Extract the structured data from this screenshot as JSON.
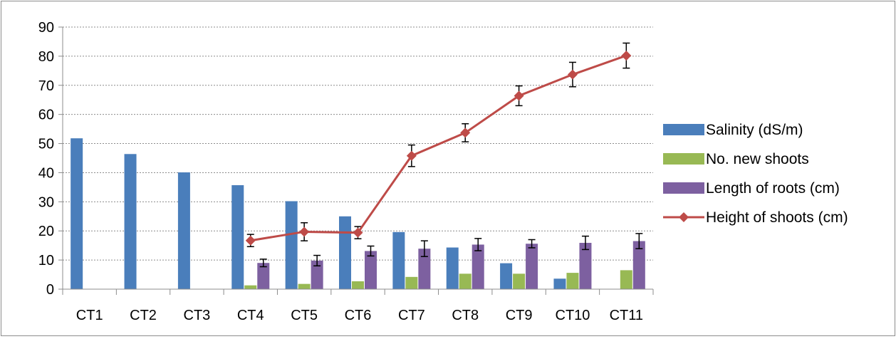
{
  "chart_data": {
    "type": "bar",
    "categories": [
      "CT1",
      "CT2",
      "CT3",
      "CT4",
      "CT5",
      "CT6",
      "CT7",
      "CT8",
      "CT9",
      "CT10",
      "CT11"
    ],
    "ylim": [
      0,
      90
    ],
    "yticks": [
      0,
      10,
      20,
      30,
      40,
      50,
      60,
      70,
      80,
      90
    ],
    "grid": true,
    "legend_position": "right",
    "series": [
      {
        "name": "Salinity (dS/m)",
        "kind": "bar",
        "color": "#4a7ebb",
        "values": [
          51.8,
          46.4,
          40.1,
          35.7,
          30.2,
          25.0,
          19.6,
          14.3,
          8.9,
          3.6,
          null
        ]
      },
      {
        "name": "No. new shoots",
        "kind": "bar",
        "color": "#98b954",
        "values": [
          null,
          null,
          null,
          1.3,
          1.8,
          2.7,
          4.2,
          5.3,
          5.3,
          5.6,
          6.5
        ]
      },
      {
        "name": "Length of roots (cm)",
        "kind": "bar",
        "color": "#7d60a0",
        "values": [
          null,
          null,
          null,
          9.0,
          9.8,
          13.1,
          13.9,
          15.3,
          15.6,
          15.9,
          16.5
        ],
        "errors": [
          null,
          null,
          null,
          1.3,
          1.8,
          1.7,
          2.7,
          2.1,
          1.4,
          2.3,
          2.6
        ]
      },
      {
        "name": "Height of shoots (cm)",
        "kind": "line",
        "color": "#be4b48",
        "values": [
          null,
          null,
          null,
          16.7,
          19.7,
          19.4,
          45.8,
          53.7,
          66.4,
          73.7,
          80.2
        ],
        "errors": [
          null,
          null,
          null,
          2.1,
          3.1,
          2.1,
          3.7,
          3.1,
          3.4,
          4.2,
          4.3
        ]
      }
    ]
  }
}
